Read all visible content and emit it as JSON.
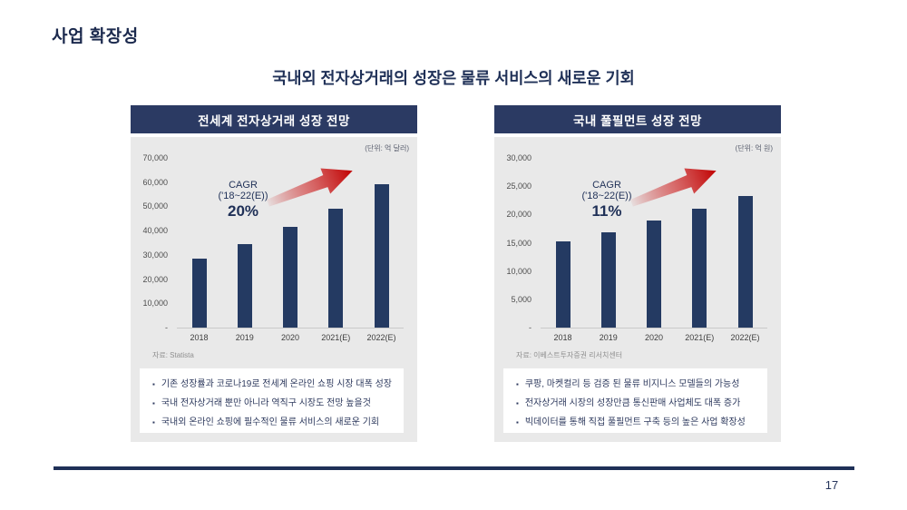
{
  "slide": {
    "title": "사업 확장성",
    "subtitle": "국내외 전자상거래의 성장은 물류 서비스의 새로운 기회",
    "page_number": "17"
  },
  "colors": {
    "navy_header": "#2b3a63",
    "bar": "#243a62",
    "panel_bg": "#e9e9e9",
    "arrow_red": "#c00000",
    "text_navy": "#1f3057"
  },
  "chart_data": [
    {
      "type": "bar",
      "title": "전세계 전자상거래 성장 전망",
      "unit_label": "(단위: 억 달러)",
      "categories": [
        "2018",
        "2019",
        "2020",
        "2021(E)",
        "2022(E)"
      ],
      "values": [
        28500,
        34500,
        41500,
        49000,
        59000
      ],
      "ylim": [
        0,
        70000
      ],
      "yticks_labels": [
        "70,000",
        "60,000",
        "50,000",
        "40,000",
        "30,000",
        "20,000",
        "10,000",
        "-"
      ],
      "grid": false,
      "legend": "none",
      "cagr": {
        "label": "CAGR",
        "range": "('18~22(E))",
        "value": "20%"
      },
      "source": "자료: Statista",
      "bullets": [
        "기존 성장률과 코로나19로 전세계 온라인 쇼핑 시장 대폭 성장",
        "국내 전자상거래 뿐만 아니라 역직구 시장도 전망 높을것",
        "국내외 온라인 쇼핑에 필수적인 물류 서비스의 새로운 기회"
      ]
    },
    {
      "type": "bar",
      "title": "국내 풀필먼트 성장 전망",
      "unit_label": "(단위: 억 원)",
      "categories": [
        "2018",
        "2019",
        "2020",
        "2021(E)",
        "2022(E)"
      ],
      "values": [
        15200,
        16900,
        18900,
        21000,
        23200
      ],
      "ylim": [
        0,
        30000
      ],
      "yticks_labels": [
        "30,000",
        "25,000",
        "20,000",
        "15,000",
        "10,000",
        "5,000",
        "-"
      ],
      "grid": false,
      "legend": "none",
      "cagr": {
        "label": "CAGR",
        "range": "('18~22(E))",
        "value": "11%"
      },
      "source": "자료: 이베스트투자증권 리서치센터",
      "bullets": [
        "쿠팡, 마켓컬리 등 검증 된 물류 비지니스 모델들의 가능성",
        "전자상거래 시장의 성장만큼 통신판매 사업체도 대폭 증가",
        "빅데이터를 통해 직접 풀필먼트 구축 등의 높은 사업 확장성"
      ]
    }
  ]
}
